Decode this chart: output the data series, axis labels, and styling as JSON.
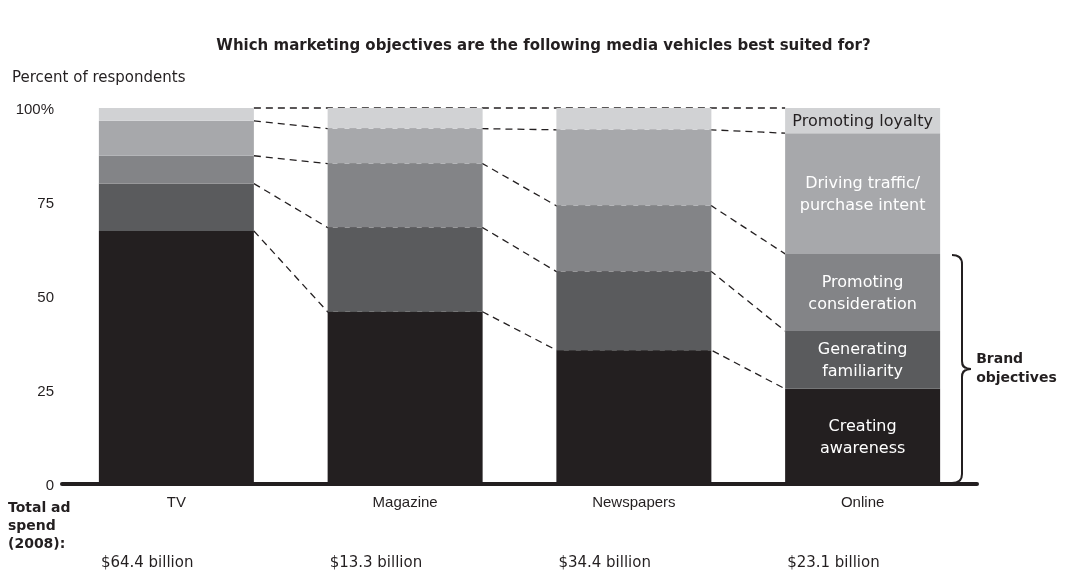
{
  "chart_data": {
    "type": "bar",
    "stacked": true,
    "title": "Which marketing objectives are the following media vehicles best suited for?",
    "ylabel": "Percent of respondents",
    "categories": [
      "TV",
      "Magazine",
      "Newspapers",
      "Online"
    ],
    "series": [
      {
        "name": "Creating awareness",
        "color": "#231f20",
        "values": [
          67.3,
          45.8,
          35.6,
          25.3
        ]
      },
      {
        "name": "Generating familiarity",
        "color": "#5a5b5d",
        "values": [
          12.6,
          22.4,
          20.9,
          15.4
        ]
      },
      {
        "name": "Promoting consideration",
        "color": "#838487",
        "values": [
          7.4,
          17.0,
          17.5,
          20.5
        ]
      },
      {
        "name": "Driving traffic/ purchase intent",
        "color": "#a7a8ab",
        "values": [
          9.3,
          9.3,
          20.2,
          32.1
        ]
      },
      {
        "name": "Promoting loyalty",
        "color": "#d1d2d4",
        "values": [
          3.4,
          5.5,
          5.8,
          6.7
        ]
      }
    ],
    "ylim": [
      0,
      100
    ],
    "yticks": [
      0,
      25,
      50,
      75,
      {
        "value": 100,
        "label": "100%"
      }
    ],
    "grid": false,
    "legend": false,
    "annotations": [
      "Total ad spend (2008):",
      "$64.4 billion",
      "$13.3 billion",
      "$34.4 billion",
      "$23.1 billion",
      "Brand objectives"
    ]
  }
}
